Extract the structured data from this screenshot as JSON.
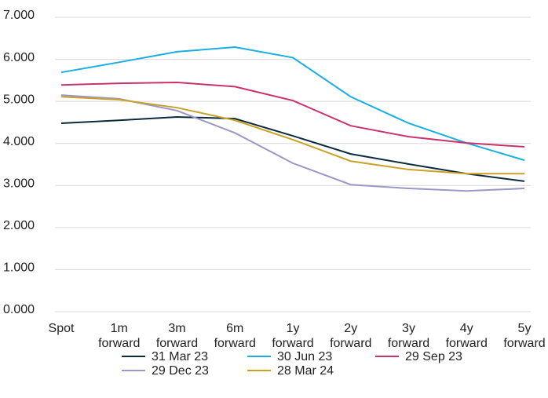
{
  "chart_data": {
    "type": "line",
    "categories": [
      "Spot",
      "1m forward",
      "3m forward",
      "6m forward",
      "1y forward",
      "2y forward",
      "3y forward",
      "4y forward",
      "5y forward"
    ],
    "series": [
      {
        "name": "31 Mar 23",
        "color": "#0d2b3e",
        "values": [
          4.48,
          4.55,
          4.63,
          4.59,
          4.18,
          3.75,
          3.51,
          3.28,
          3.1
        ]
      },
      {
        "name": "30 Jun 23",
        "color": "#1aaee5",
        "values": [
          5.69,
          5.93,
          6.18,
          6.29,
          6.04,
          5.11,
          4.48,
          4.01,
          3.6
        ]
      },
      {
        "name": "29 Sep 23",
        "color": "#c8336e",
        "values": [
          5.39,
          5.43,
          5.45,
          5.35,
          5.02,
          4.42,
          4.16,
          4.01,
          3.92
        ]
      },
      {
        "name": "29 Dec 23",
        "color": "#9b97c6",
        "values": [
          5.15,
          5.06,
          4.78,
          4.25,
          3.53,
          3.02,
          2.93,
          2.87,
          2.93
        ]
      },
      {
        "name": "28 Mar 24",
        "color": "#c9a227",
        "values": [
          5.11,
          5.04,
          4.85,
          4.55,
          4.09,
          3.58,
          3.38,
          3.28,
          3.28
        ]
      }
    ],
    "ylim": [
      0,
      7
    ],
    "yticks": [
      {
        "value": 0,
        "label": "0.000"
      },
      {
        "value": 1,
        "label": "1.000"
      },
      {
        "value": 2,
        "label": "2.000"
      },
      {
        "value": 3,
        "label": "3.000"
      },
      {
        "value": 4,
        "label": "4.000"
      },
      {
        "value": 5,
        "label": "5.000"
      },
      {
        "value": 6,
        "label": "6.000"
      },
      {
        "value": 7,
        "label": "7.000"
      }
    ],
    "grid": true,
    "legend": "bottom"
  }
}
